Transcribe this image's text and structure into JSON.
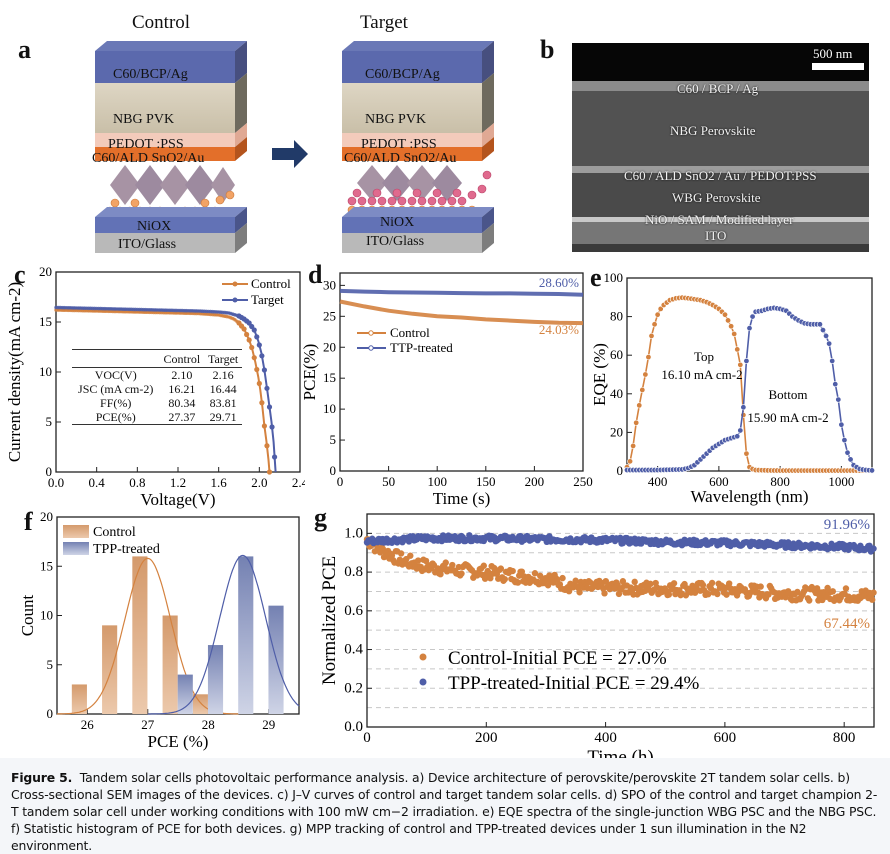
{
  "figure": {
    "panel_letters": [
      "a",
      "b",
      "c",
      "d",
      "e",
      "f",
      "g"
    ],
    "caption": {
      "label": "Figure 5.",
      "text": "Tandem solar cells photovoltaic performance analysis. a) Device architecture of perovskite/perovskite 2T tandem solar cells. b) Cross-sectional SEM images of the devices. c) J–V curves of control and target tandem solar cells. d) SPO of the control and target champion 2-T tandem solar cell under working conditions with 100 mW cm−2 irradiation. e) EQE spectra of the single-junction WBG PSC and the NBG PSC. f) Statistic histogram of PCE for both devices. g) MPP tracking of control and TPP-treated devices under 1 sun illumination in the N2 environment."
    },
    "colors": {
      "control": "#d4823f",
      "target": "#4f5ea8",
      "arrow": "#213a68",
      "control_bar": "#d9a57c",
      "target_bar": "#7f8bb8"
    }
  },
  "panel_a": {
    "titles": [
      "Control",
      "Target"
    ],
    "layers": [
      "C60/BCP/Ag",
      "NBG PVK",
      "PEDOT :PSS",
      "C60/ALD SnO2/Au",
      "NiOX",
      "ITO/Glass"
    ],
    "arrow_icon": "right-arrow"
  },
  "panel_b": {
    "scale_bar": "500 nm",
    "labels": [
      "C60 / BCP / Ag",
      "NBG Perovskite",
      "C60 / ALD SnO2 / Au / PEDOT:PSS",
      "WBG Perovskite",
      "NiO / SAM / Modified layer",
      "ITO"
    ]
  },
  "chart_data": [
    {
      "id": "c",
      "type": "line",
      "title": "",
      "xlabel": "Voltage(V)",
      "ylabel": "Current density(mA cm-2)",
      "xlim": [
        0,
        2.4
      ],
      "ylim": [
        0,
        20
      ],
      "xticks": [
        "0.0",
        "0.4",
        "0.8",
        "1.2",
        "1.6",
        "2.0",
        "2.4"
      ],
      "yticks": [
        "0",
        "5",
        "10",
        "15",
        "20"
      ],
      "legend": {
        "position": "top-right",
        "entries": [
          "Control",
          "Target"
        ]
      },
      "series": [
        {
          "name": "Control",
          "jsc": 16.21,
          "voc": 2.1,
          "ff": 80.34,
          "x": [
            0,
            0.2,
            0.4,
            0.6,
            0.8,
            1.0,
            1.2,
            1.4,
            1.6,
            1.7,
            1.75,
            1.8,
            1.85,
            1.9,
            1.93,
            1.96,
            1.99,
            2.01,
            2.03,
            2.05,
            2.07,
            2.09,
            2.1
          ],
          "y": [
            16.2,
            16.15,
            16.1,
            16.05,
            16.0,
            15.95,
            15.9,
            15.85,
            15.7,
            15.5,
            15.3,
            14.9,
            14.3,
            13.2,
            12.3,
            11.0,
            9.5,
            8.2,
            6.5,
            4.6,
            3.1,
            1.2,
            0
          ]
        },
        {
          "name": "Target",
          "jsc": 16.44,
          "voc": 2.16,
          "ff": 83.81,
          "x": [
            0,
            0.2,
            0.4,
            0.6,
            0.8,
            1.0,
            1.2,
            1.4,
            1.6,
            1.7,
            1.8,
            1.85,
            1.9,
            1.95,
            1.99,
            2.02,
            2.05,
            2.08,
            2.1,
            2.12,
            2.14,
            2.15,
            2.16
          ],
          "y": [
            16.45,
            16.4,
            16.35,
            16.3,
            16.25,
            16.2,
            16.15,
            16.1,
            16.0,
            15.9,
            15.6,
            15.3,
            14.9,
            14.2,
            13.1,
            11.9,
            10.2,
            8.0,
            6.5,
            5.0,
            3.0,
            1.5,
            0
          ]
        }
      ],
      "table": {
        "headers": [
          "",
          "Control",
          "Target"
        ],
        "rows": [
          [
            "VOC(V)",
            "2.10",
            "2.16"
          ],
          [
            "JSC (mA cm-2)",
            "16.21",
            "16.44"
          ],
          [
            "FF(%)",
            "80.34",
            "83.81"
          ],
          [
            "PCE(%)",
            "27.37",
            "29.71"
          ]
        ]
      }
    },
    {
      "id": "d",
      "type": "line",
      "xlabel": "Time (s)",
      "ylabel": "PCE(%)",
      "xlim": [
        0,
        250
      ],
      "ylim": [
        0,
        32
      ],
      "xticks": [
        "0",
        "50",
        "100",
        "150",
        "200",
        "250"
      ],
      "yticks": [
        "0",
        "5",
        "10",
        "15",
        "20",
        "25",
        "30"
      ],
      "legend": {
        "position": "upper-left",
        "entries": [
          "Control",
          "TTP-treated"
        ]
      },
      "annotations": [
        "28.60%",
        "24.03%"
      ],
      "series": [
        {
          "name": "Control",
          "x": [
            0,
            25,
            50,
            75,
            100,
            125,
            150,
            175,
            200,
            225,
            250
          ],
          "y": [
            27.4,
            26.6,
            25.9,
            25.4,
            25.0,
            24.8,
            24.5,
            24.3,
            24.1,
            23.95,
            23.9
          ]
        },
        {
          "name": "TTP-treated",
          "x": [
            0,
            25,
            50,
            75,
            100,
            125,
            150,
            175,
            200,
            225,
            250
          ],
          "y": [
            29.1,
            29.0,
            28.9,
            28.85,
            28.8,
            28.75,
            28.7,
            28.7,
            28.65,
            28.6,
            28.5
          ]
        }
      ]
    },
    {
      "id": "e",
      "type": "line",
      "xlabel": "Wavelength (nm)",
      "ylabel": "EQE (%)",
      "xlim": [
        300,
        1100
      ],
      "ylim": [
        0,
        100
      ],
      "xticks": [
        "400",
        "600",
        "800",
        "1000"
      ],
      "yticks": [
        "0",
        "20",
        "40",
        "60",
        "80",
        "100"
      ],
      "annotations": [
        "Top",
        "16.10 mA cm-2",
        "Bottom",
        "15.90 mA cm-2"
      ],
      "series": [
        {
          "name": "Top",
          "x": [
            300,
            310,
            320,
            330,
            340,
            350,
            360,
            370,
            380,
            390,
            400,
            410,
            420,
            440,
            460,
            480,
            500,
            520,
            540,
            560,
            580,
            600,
            620,
            630,
            640,
            650,
            660,
            670,
            680,
            690,
            700,
            710,
            720,
            760,
            800,
            900,
            1000,
            1100
          ],
          "y": [
            2,
            5,
            13,
            25,
            34,
            42,
            50,
            59,
            70,
            76,
            81,
            84,
            86,
            88.5,
            89.5,
            89.8,
            89.5,
            89,
            88.5,
            87.5,
            86,
            84,
            81,
            78,
            75,
            71,
            63,
            55,
            29,
            9,
            2,
            1,
            0.5,
            0.3,
            0.2,
            0.2,
            0.2,
            0.2
          ]
        },
        {
          "name": "Bottom",
          "x": [
            300,
            400,
            480,
            500,
            520,
            540,
            560,
            580,
            600,
            620,
            640,
            660,
            670,
            680,
            690,
            700,
            710,
            720,
            740,
            760,
            780,
            800,
            820,
            840,
            860,
            880,
            900,
            920,
            930,
            940,
            950,
            960,
            970,
            980,
            990,
            1000,
            1010,
            1020,
            1030,
            1040,
            1060,
            1080,
            1100
          ],
          "y": [
            0.5,
            0.5,
            0.8,
            1.5,
            3,
            6,
            9,
            12,
            14,
            16,
            17,
            18,
            21,
            33,
            57,
            74,
            80,
            82.5,
            83,
            84,
            84.5,
            84,
            83,
            80,
            78,
            76.5,
            76,
            76,
            76,
            73,
            70,
            66,
            57,
            45,
            37,
            24,
            16,
            9.5,
            6,
            3,
            1,
            0.5,
            0.3
          ]
        }
      ]
    },
    {
      "id": "f",
      "type": "bar",
      "xlabel": "PCE (%)",
      "ylabel": "Count",
      "xlim": [
        25.5,
        29.5
      ],
      "ylim": [
        0,
        20
      ],
      "xticks": [
        "26",
        "27",
        "28",
        "29"
      ],
      "yticks": [
        "0",
        "5",
        "10",
        "15",
        "20"
      ],
      "legend": {
        "position": "top-left",
        "entries": [
          "Control",
          "TPP-treated"
        ]
      },
      "series": [
        {
          "name": "Control",
          "centers": [
            25.87,
            26.37,
            26.87,
            27.37,
            27.87
          ],
          "values": [
            3,
            9,
            16,
            10,
            2
          ],
          "fit": {
            "mean": 27.0,
            "sigma": 0.38,
            "peak": 15.8
          }
        },
        {
          "name": "TPP-treated",
          "centers": [
            27.62,
            28.12,
            28.62,
            29.12
          ],
          "values": [
            4,
            7,
            16,
            11
          ],
          "fit": {
            "mean": 28.57,
            "sigma": 0.38,
            "peak": 16.1
          }
        }
      ]
    },
    {
      "id": "g",
      "type": "scatter",
      "xlabel": "Time (h)",
      "ylabel": "Normalized PCE",
      "xlim": [
        0,
        850
      ],
      "ylim": [
        0,
        1.1
      ],
      "xticks": [
        "0",
        "200",
        "400",
        "600",
        "800"
      ],
      "yticks": [
        "0.0",
        "0.2",
        "0.4",
        "0.6",
        "0.8",
        "1.0"
      ],
      "grid": true,
      "legend": {
        "position": "lower-left",
        "entries": [
          "Control-Initial PCE = 27.0%",
          "TPP-treated-Initial PCE = 29.4%"
        ]
      },
      "annotations": [
        "91.96%",
        "67.44%"
      ],
      "series": [
        {
          "name": "Control-Initial PCE = 27.0%",
          "trend_x": [
            0,
            20,
            60,
            100,
            150,
            200,
            250,
            300,
            330,
            360,
            400,
            500,
            600,
            700,
            800,
            850
          ],
          "trend_y": [
            0.97,
            0.92,
            0.86,
            0.83,
            0.81,
            0.8,
            0.78,
            0.77,
            0.74,
            0.72,
            0.72,
            0.715,
            0.71,
            0.69,
            0.685,
            0.674
          ],
          "final": 0.6744
        },
        {
          "name": "TPP-treated-Initial PCE = 29.4%",
          "trend_x": [
            0,
            100,
            200,
            300,
            400,
            500,
            600,
            700,
            800,
            850
          ],
          "trend_y": [
            0.96,
            0.975,
            0.975,
            0.97,
            0.965,
            0.955,
            0.95,
            0.94,
            0.93,
            0.92
          ],
          "final": 0.9196
        }
      ]
    }
  ]
}
